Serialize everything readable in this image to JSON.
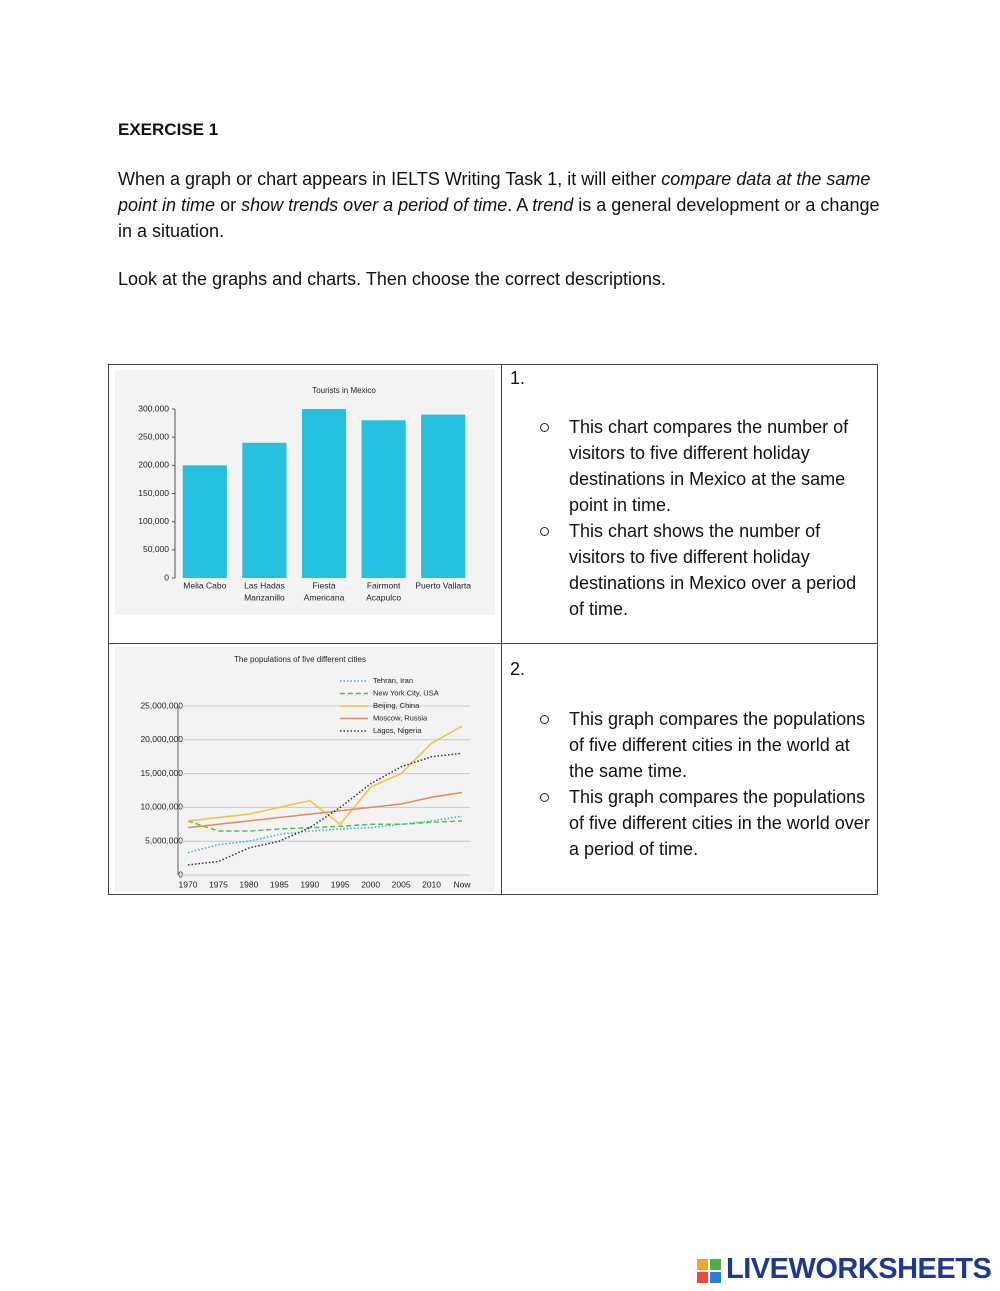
{
  "header": {
    "title": "EXERCISE 1"
  },
  "intro": [
    "When a graph or chart appears in IELTS Writing Task 1, it will either ",
    "compare data at the same point in time",
    " or ",
    "show trends over a period of time",
    ". A ",
    "trend",
    " is a general development or a change in a situation."
  ],
  "instruction": "Look at the graphs and charts. Then choose the correct descriptions.",
  "questions": [
    {
      "number": "1.",
      "options": [
        "This chart compares the number of visitors to five different holiday destinations in Mexico at the same point in time.",
        "This chart shows the number of visitors to five different holiday destinations in Mexico over a period of time."
      ]
    },
    {
      "number": "2.",
      "options": [
        "This graph compares the populations of five different cities in the world at the same time.",
        "This graph compares the populations of five different cities in the world over a period of time."
      ]
    }
  ],
  "footer": {
    "brand": "LIVEWORKSHEETS"
  },
  "chart_data": [
    {
      "type": "bar",
      "title": "Tourists in Mexico",
      "categories": [
        [
          "Melia Cabo"
        ],
        [
          "Las Hadas",
          "Manzanillo"
        ],
        [
          "Fiesta",
          "Americana"
        ],
        [
          "Fairmont",
          "Acapulco"
        ],
        [
          "Puerto Vallarta"
        ]
      ],
      "values": [
        200000,
        240000,
        300000,
        280000,
        290000
      ],
      "color": "#25bfdf",
      "ylim": [
        0,
        300000
      ],
      "yticks": [
        0,
        {
          "value": 50000,
          "label": "50,000"
        },
        {
          "value": 100000,
          "label": "100,000"
        },
        {
          "value": 150000,
          "label": "150,000"
        },
        {
          "value": 200000,
          "label": "200,000"
        },
        {
          "value": 250000,
          "label": "250,000"
        },
        {
          "value": 300000,
          "label": "300,000"
        }
      ],
      "grid": false
    },
    {
      "type": "line",
      "title": "The populations of five different cities",
      "categories": [
        "1970",
        "1975",
        "1980",
        "1985",
        "1990",
        "1995",
        "2000",
        "2005",
        "2010",
        "Now"
      ],
      "series": [
        {
          "name": "Tehran, Iran",
          "color": "#29b5d0",
          "style": "dotted",
          "values": [
            3300000,
            4500000,
            5000000,
            6000000,
            6500000,
            6800000,
            7000000,
            7500000,
            8000000,
            8700000
          ]
        },
        {
          "name": "New York City, USA",
          "color": "#5cb85c",
          "style": "dashed",
          "values": [
            8000000,
            6500000,
            6500000,
            6800000,
            7000000,
            7200000,
            7500000,
            7500000,
            7800000,
            8000000
          ]
        },
        {
          "name": "Beijing, China",
          "color": "#f4c03e",
          "style": "solid",
          "values": [
            8000000,
            8500000,
            9000000,
            10000000,
            11000000,
            7500000,
            13000000,
            15000000,
            19500000,
            22000000
          ]
        },
        {
          "name": "Moscow, Russia",
          "color": "#e08a5e",
          "style": "solid",
          "values": [
            7000000,
            7500000,
            8000000,
            8500000,
            9000000,
            9500000,
            10000000,
            10500000,
            11500000,
            12200000
          ]
        },
        {
          "name": "Lagos, Nigeria",
          "color": "#333333",
          "style": "dotted",
          "values": [
            1500000,
            2000000,
            4000000,
            5000000,
            7000000,
            10000000,
            13500000,
            16000000,
            17500000,
            18000000
          ]
        }
      ],
      "ylim": [
        0,
        25000000
      ],
      "yticks": [
        0,
        {
          "value": 5000000,
          "label": "5,000,000"
        },
        {
          "value": 10000000,
          "label": "10,000,000"
        },
        {
          "value": 15000000,
          "label": "15,000,000"
        },
        {
          "value": 20000000,
          "label": "20,000,000"
        },
        {
          "value": 25000000,
          "label": "25,000,000"
        }
      ],
      "grid": true,
      "legend": "top-right"
    }
  ]
}
